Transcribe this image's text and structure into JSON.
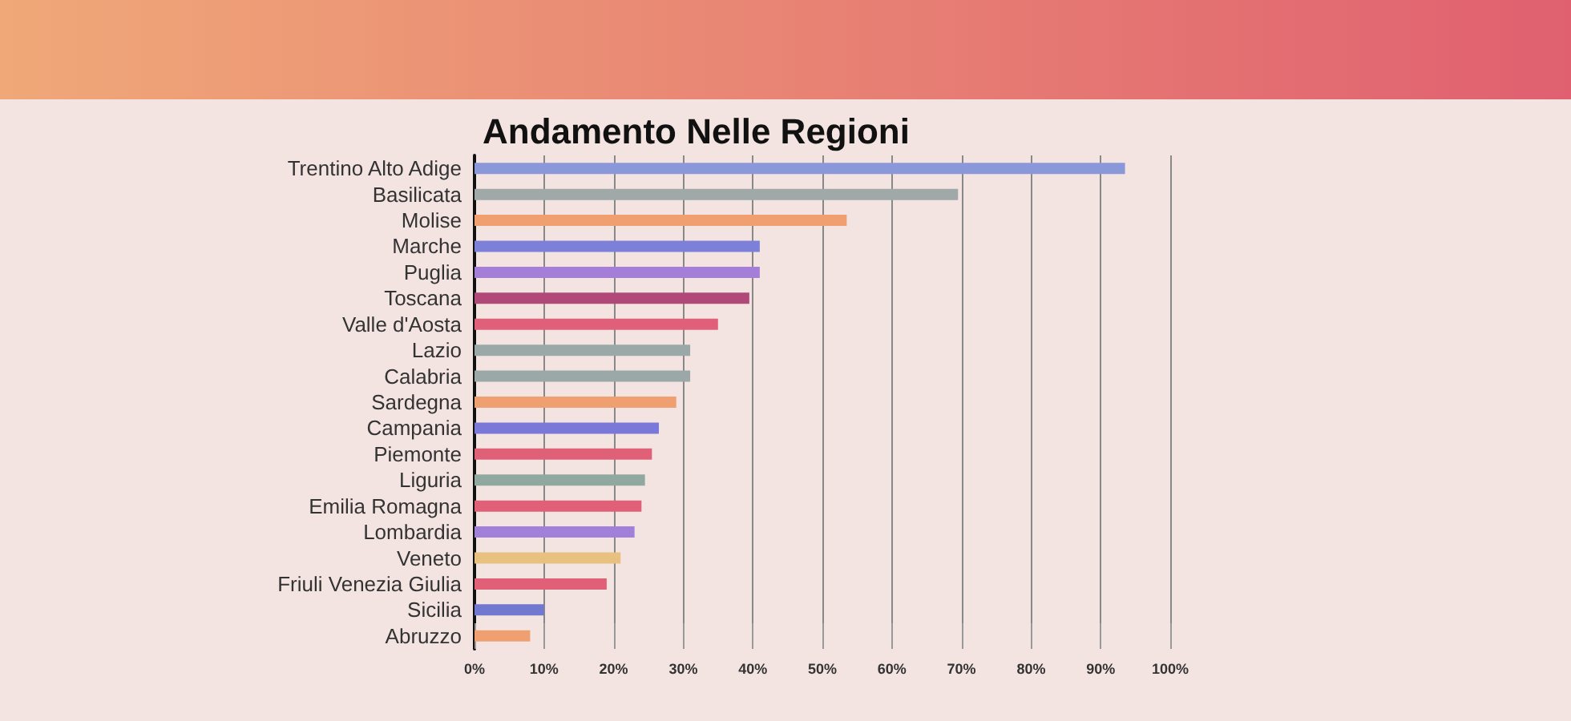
{
  "chart_data": {
    "type": "bar",
    "orientation": "horizontal",
    "title": "Andamento Nelle Regioni",
    "categories": [
      "Trentino Alto Adige",
      "Basilicata",
      "Molise",
      "Marche",
      "Puglia",
      "Toscana",
      "Valle d'Aosta",
      "Lazio",
      "Calabria",
      "Sardegna",
      "Campania",
      "Piemonte",
      "Liguria",
      "Emilia Romagna",
      "Lombardia",
      "Veneto",
      "Friuli Venezia Giulia",
      "Sicilia",
      "Abruzzo"
    ],
    "values": [
      93.5,
      69.5,
      53.5,
      41,
      41,
      39.5,
      35,
      31,
      31,
      29,
      26.5,
      25.5,
      24.5,
      24,
      23,
      21,
      19,
      10,
      8
    ],
    "colors": [
      "#8a97d8",
      "#a0a8a8",
      "#f0a070",
      "#7c80d8",
      "#a47ed8",
      "#b04878",
      "#e0607a",
      "#9aa8a8",
      "#9aa8a8",
      "#f0a070",
      "#7a78d8",
      "#e06078",
      "#90a8a0",
      "#e06078",
      "#a080d8",
      "#e8c080",
      "#e06078",
      "#7078d0",
      "#f0a070"
    ],
    "xlim": [
      0,
      100
    ],
    "xticks": [
      {
        "value": 0,
        "label": "0%"
      },
      {
        "value": 10,
        "label": "10%"
      },
      {
        "value": 20,
        "label": "20%"
      },
      {
        "value": 30,
        "label": "30%"
      },
      {
        "value": 40,
        "label": "40%"
      },
      {
        "value": 50,
        "label": "50%"
      },
      {
        "value": 60,
        "label": "60%"
      },
      {
        "value": 70,
        "label": "70%"
      },
      {
        "value": 80,
        "label": "80%"
      },
      {
        "value": 90,
        "label": "90%"
      },
      {
        "value": 100,
        "label": "100%"
      }
    ],
    "grid": "x"
  }
}
